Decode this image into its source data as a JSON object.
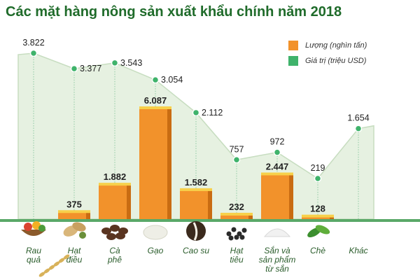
{
  "title": "Các mặt hàng nông sản xuất khẩu chính năm 2018",
  "colors": {
    "title": "#1f6b2a",
    "bar": "#f2922b",
    "bar_dark": "#c96c12",
    "bar_top": "#f7d04a",
    "area": "#e6f1e1",
    "line": "#c7ddc0",
    "dot": "#3fb36b"
  },
  "chart_data": {
    "type": "bar",
    "categories": [
      "Rau quả",
      "Hạt điều",
      "Cà phê",
      "Gạo",
      "Cao su",
      "Hạt tiêu",
      "Sắn và sản phẩm từ sắn",
      "Chè",
      "Khác"
    ],
    "series": [
      {
        "name": "Lượng (nghìn tấn)",
        "type": "bar",
        "values": [
          null,
          375,
          1882,
          6087,
          1582,
          232,
          2447,
          128,
          null
        ],
        "labels": [
          "",
          "375",
          "1.882",
          "6.087",
          "1.582",
          "232",
          "2.447",
          "128",
          ""
        ]
      },
      {
        "name": "Giá trị (triệu USD)",
        "type": "area",
        "values": [
          3822,
          3377,
          3543,
          3054,
          2112,
          757,
          972,
          219,
          1654
        ],
        "labels": [
          "3.822",
          "3.377",
          "3.543",
          "3.054",
          "2.112",
          "757",
          "972",
          "219",
          "1.654"
        ]
      }
    ],
    "legend_position": "top-right",
    "grid": false
  },
  "category_labels": [
    [
      "Rau",
      "quả"
    ],
    [
      "Hạt",
      "điều"
    ],
    [
      "Cà",
      "phê"
    ],
    [
      "Gạo"
    ],
    [
      "Cao su"
    ],
    [
      "Hạt",
      "tiêu"
    ],
    [
      "Sắn và",
      "sản phẩm",
      "từ sắn"
    ],
    [
      "Chè"
    ],
    [
      "Khác"
    ]
  ],
  "icons": [
    "vegetables-basket-icon",
    "cashew-nut-icon",
    "coffee-bean-icon",
    "rice-grain-icon",
    "rubber-latex-icon",
    "pepper-icon",
    "cassava-flour-icon",
    "tea-leaf-icon",
    ""
  ]
}
